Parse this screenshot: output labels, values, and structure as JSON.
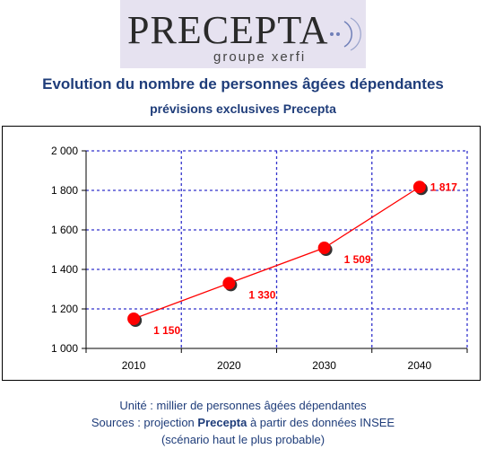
{
  "logo": {
    "name": "PRECEPTA",
    "tagline": "groupe xerfi"
  },
  "header": {
    "title": "Evolution du nombre de personnes âgées dépendantes",
    "subtitle": "prévisions exclusives Precepta"
  },
  "footer": {
    "unit": "Unité : millier de personnes âgées dépendantes",
    "source_prefix": "Sources : projection ",
    "source_brand": "Precepta",
    "source_suffix": " à partir des données INSEE",
    "scenario": "(scénario haut le plus probable)"
  },
  "colors": {
    "title": "#1f3d7a",
    "line": "#ff0000",
    "marker": "#ff0000",
    "label": "#ff0000",
    "grid": "#3333cc"
  },
  "chart_data": {
    "type": "line",
    "title": "Evolution du nombre de personnes âgées dépendantes",
    "subtitle": "prévisions exclusives Precepta",
    "xlabel": "",
    "ylabel": "",
    "categories": [
      "2010",
      "2020",
      "2030",
      "2040"
    ],
    "series": [
      {
        "values": [
          1150,
          1330,
          1509,
          1817
        ]
      }
    ],
    "data_labels": [
      "1 150",
      "1 330",
      "1 509",
      "1 817"
    ],
    "y_ticks": [
      1000,
      1200,
      1400,
      1600,
      1800,
      2000
    ],
    "y_tick_labels": [
      "1 000",
      "1 200",
      "1 400",
      "1 600",
      "1 800",
      "2 000"
    ],
    "ylim": [
      1000,
      2000
    ],
    "grid": true,
    "legend": "none"
  }
}
